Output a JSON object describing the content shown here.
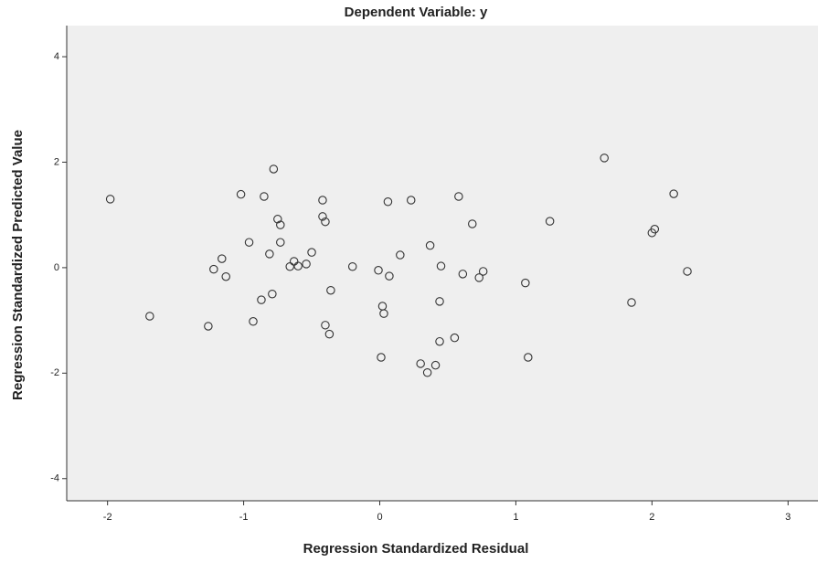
{
  "chart_data": {
    "type": "scatter",
    "title": "Dependent Variable: y",
    "x_label": "Regression Standardized Residual",
    "y_label": "Regression Standardized Predicted Value",
    "x": [
      -1.98,
      -1.69,
      -1.26,
      -1.22,
      -1.16,
      -1.13,
      -1.02,
      -0.96,
      -0.93,
      -0.87,
      -0.85,
      -0.81,
      -0.79,
      -0.78,
      -0.75,
      -0.73,
      -0.73,
      -0.66,
      -0.63,
      -0.6,
      -0.54,
      -0.5,
      -0.42,
      -0.42,
      -0.4,
      -0.4,
      -0.37,
      -0.36,
      -0.2,
      -0.01,
      0.02,
      0.03,
      0.01,
      0.06,
      0.07,
      0.15,
      0.23,
      0.3,
      0.35,
      0.37,
      0.41,
      0.45,
      0.44,
      0.44,
      0.55,
      0.58,
      0.61,
      0.68,
      0.73,
      0.76,
      1.07,
      1.09,
      1.25,
      1.65,
      1.85,
      2.0,
      2.02,
      2.16,
      2.26
    ],
    "values": [
      1.3,
      -0.92,
      -1.11,
      -0.03,
      0.17,
      -0.17,
      1.39,
      0.48,
      -1.02,
      -0.61,
      1.35,
      0.26,
      -0.5,
      1.87,
      0.92,
      0.81,
      0.48,
      0.02,
      0.12,
      0.03,
      0.07,
      0.29,
      1.28,
      0.97,
      0.87,
      -1.09,
      -1.26,
      -0.43,
      0.02,
      -0.05,
      -0.73,
      -0.87,
      -1.7,
      1.25,
      -0.16,
      0.24,
      1.28,
      -1.82,
      -1.99,
      0.42,
      -1.85,
      0.03,
      -0.64,
      -1.4,
      -1.33,
      1.35,
      -0.12,
      0.83,
      -0.19,
      -0.07,
      -0.29,
      -1.7,
      0.88,
      2.08,
      -0.66,
      0.66,
      0.73,
      1.4,
      -0.07
    ],
    "color": "#333333",
    "background": "#efefef",
    "xlim": [
      -2.3,
      3.22
    ],
    "xticks": [
      -2,
      -1,
      0,
      1,
      2,
      3
    ],
    "ylim": [
      -4.42,
      4.59
    ],
    "yticks": [
      -4,
      -2,
      0,
      2,
      4
    ]
  }
}
